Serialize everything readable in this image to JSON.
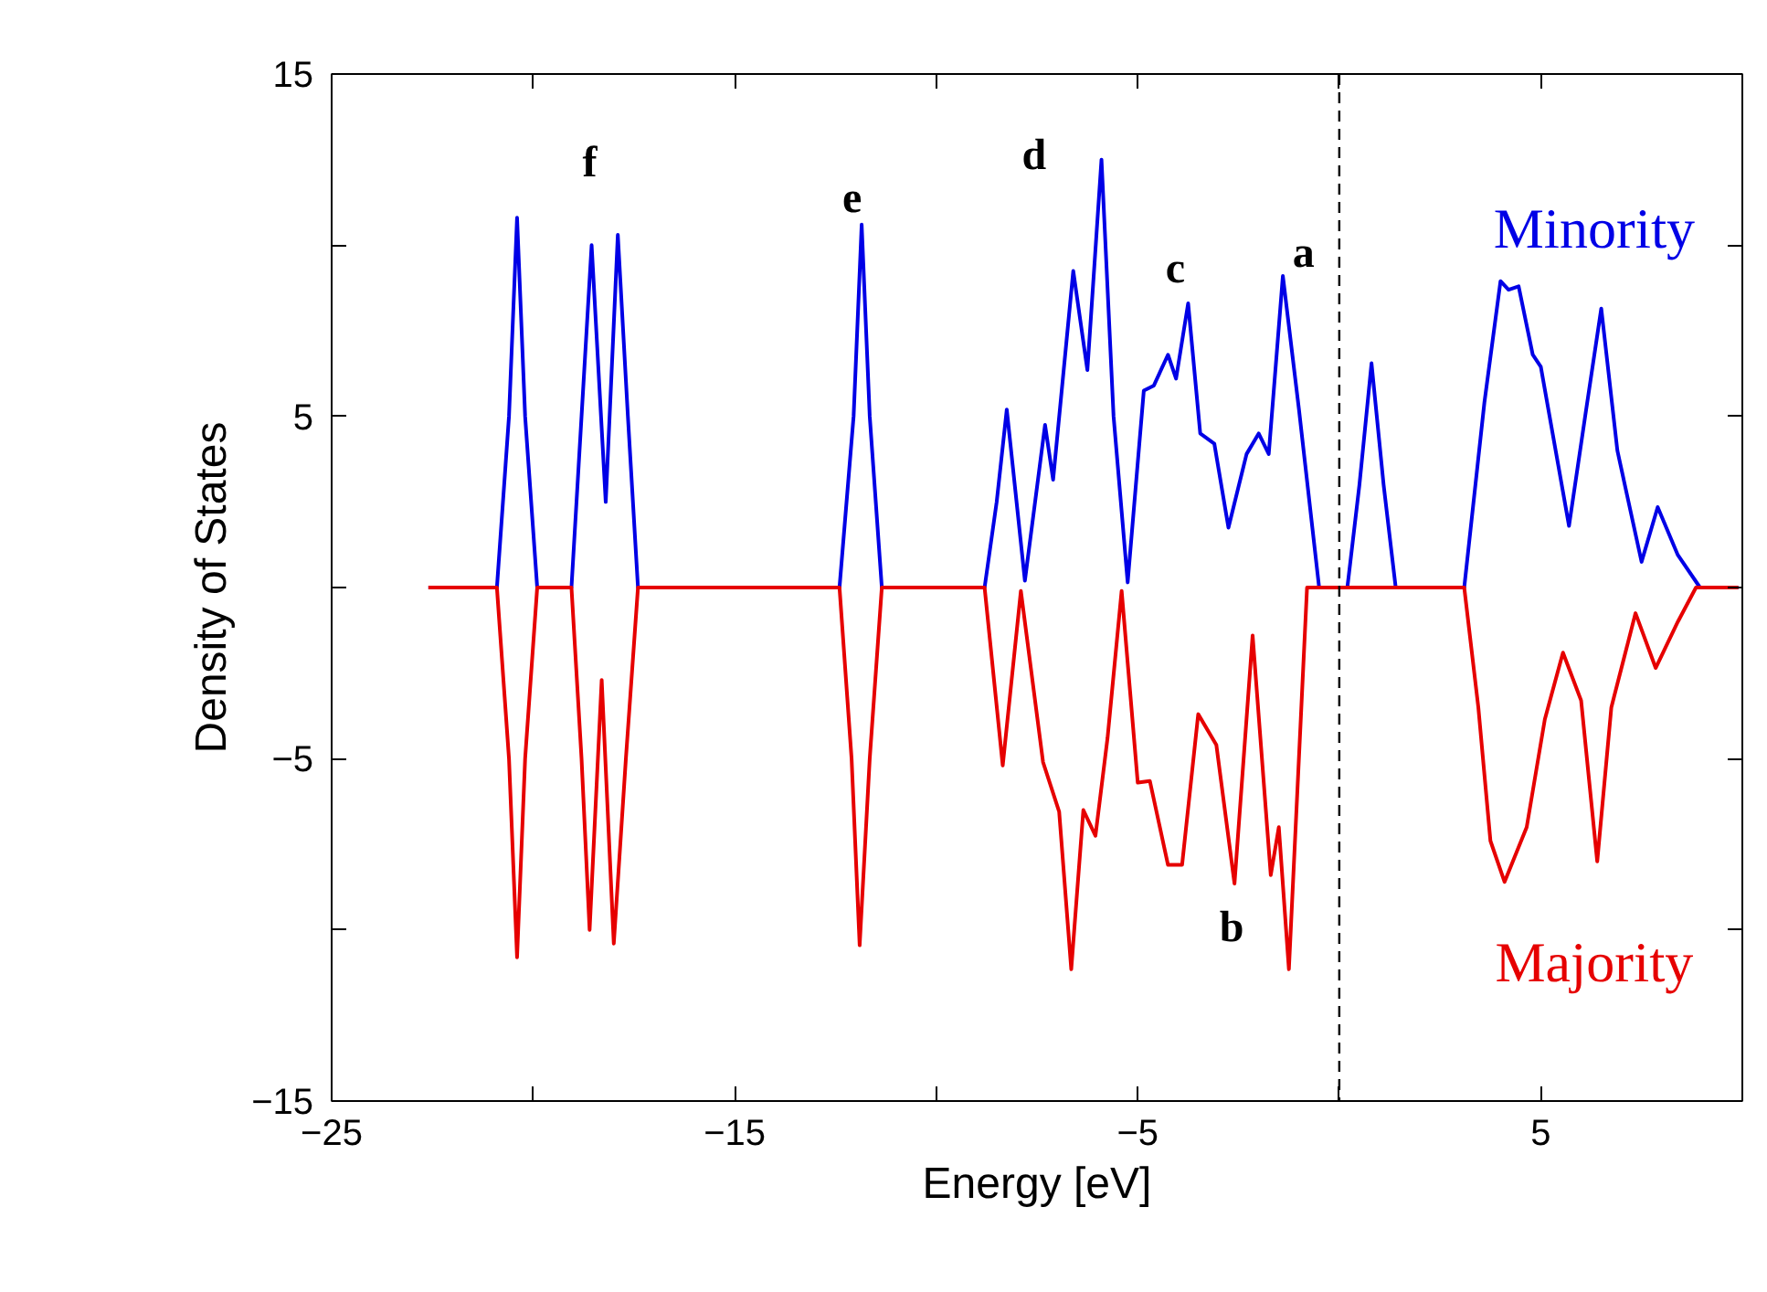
{
  "chart_data": {
    "type": "line",
    "xlabel": "Energy [eV]",
    "ylabel": "Density of States",
    "xlim": [
      -25,
      10
    ],
    "ylim": [
      -15,
      15
    ],
    "xticks": [
      -25,
      {
        "value": -20,
        "label": null
      },
      -15,
      {
        "value": -10,
        "label": null
      },
      -5,
      {
        "value": 0,
        "label": null
      },
      5
    ],
    "yticks": [
      -15,
      {
        "value": -10,
        "label": null
      },
      -5,
      {
        "value": 0,
        "label": null
      },
      5,
      {
        "value": 10,
        "label": null
      },
      15
    ],
    "grid": false,
    "marker": "none",
    "line_style": "solid",
    "ref_lines": [
      {
        "axis": "x",
        "value": 0,
        "color": "#000000",
        "line_style": "dashed"
      }
    ],
    "series": [
      {
        "name": "Minority",
        "color": "#0000e6",
        "x": [
          -22.6,
          -20.9,
          -20.6,
          -20.4,
          -20.2,
          -19.9,
          -19.05,
          -18.8,
          -18.55,
          -18.2,
          -17.9,
          -17.65,
          -17.4,
          -12.4,
          -12.05,
          -11.85,
          -11.65,
          -11.35,
          -8.8,
          -8.5,
          -8.25,
          -7.8,
          -7.3,
          -7.1,
          -6.6,
          -6.25,
          -5.9,
          -5.6,
          -5.25,
          -4.85,
          -4.6,
          -4.25,
          -4.05,
          -3.75,
          -3.45,
          -3.1,
          -2.75,
          -2.3,
          -2.0,
          -1.75,
          -1.4,
          -1.0,
          -0.5,
          0.2,
          0.5,
          0.8,
          1.1,
          1.4,
          3.1,
          3.6,
          4.0,
          4.2,
          4.45,
          4.8,
          5.0,
          5.7,
          6.1,
          6.5,
          6.9,
          7.5,
          7.9,
          8.4,
          8.95,
          9.9
        ],
        "values": [
          0,
          0,
          5,
          10.8,
          5,
          0,
          0,
          5,
          10.0,
          2.5,
          10.3,
          5,
          0,
          0,
          5,
          10.6,
          5,
          0,
          0,
          2.5,
          5.2,
          0.2,
          4.75,
          3.15,
          9.25,
          6.35,
          12.5,
          5,
          0.15,
          5.75,
          5.9,
          6.8,
          6.1,
          8.3,
          4.5,
          4.2,
          1.75,
          3.9,
          4.5,
          3.9,
          9.1,
          5.2,
          0,
          0,
          3,
          6.55,
          3,
          0,
          0,
          5.4,
          8.95,
          8.7,
          8.8,
          6.8,
          6.45,
          1.8,
          5,
          8.15,
          4,
          0.75,
          2.35,
          0.95,
          0,
          0
        ]
      },
      {
        "name": "Majority",
        "color": "#e60000",
        "x": [
          -22.6,
          -20.9,
          -20.6,
          -20.4,
          -20.2,
          -19.9,
          -19.05,
          -18.8,
          -18.6,
          -18.3,
          -18.0,
          -17.7,
          -17.4,
          -12.4,
          -12.1,
          -11.9,
          -11.65,
          -11.35,
          -8.8,
          -8.35,
          -7.9,
          -7.35,
          -6.95,
          -6.65,
          -6.35,
          -6.05,
          -5.75,
          -5.4,
          -5.0,
          -4.7,
          -4.25,
          -3.9,
          -3.5,
          -3.05,
          -2.6,
          -2.15,
          -1.7,
          -1.5,
          -1.25,
          -0.8,
          3.1,
          3.45,
          3.75,
          4.1,
          4.65,
          5.1,
          5.55,
          6.0,
          6.4,
          6.75,
          7.35,
          7.85,
          8.4,
          8.85,
          9.9
        ],
        "values": [
          0,
          0,
          -5,
          -10.8,
          -5,
          0,
          0,
          -5,
          -10.0,
          -2.7,
          -10.4,
          -5,
          0,
          0,
          -5,
          -10.45,
          -5,
          0,
          0,
          -5.2,
          -0.1,
          -5.1,
          -6.55,
          -11.15,
          -6.5,
          -7.25,
          -4.4,
          -0.1,
          -5.7,
          -5.65,
          -8.1,
          -8.1,
          -3.7,
          -4.6,
          -8.65,
          -1.4,
          -8.4,
          -7.0,
          -11.15,
          0,
          0,
          -3.5,
          -7.4,
          -8.6,
          -7.0,
          -3.85,
          -1.9,
          -3.3,
          -8.0,
          -3.5,
          -0.75,
          -2.35,
          -1.0,
          0,
          0
        ]
      }
    ],
    "annotations": [
      "f",
      "e",
      "d",
      "c",
      "a",
      "b"
    ]
  }
}
